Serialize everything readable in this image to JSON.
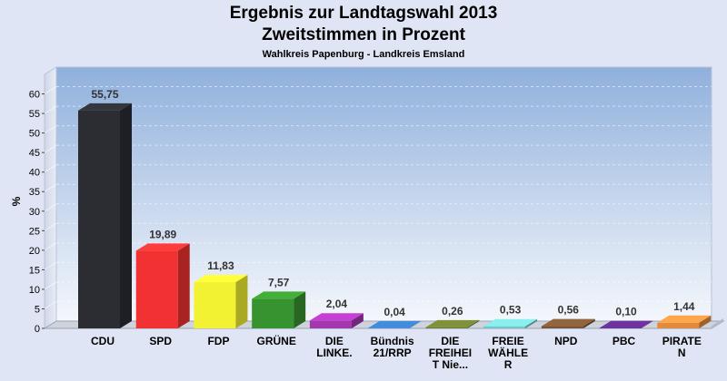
{
  "chart_data": {
    "type": "bar",
    "title": "Ergebnis zur Landtagswahl 2013",
    "subtitle": "Zweitstimmen in Prozent",
    "caption": "Wahlkreis Papenburg - Landkreis Emsland",
    "ylabel": "%",
    "xlabel": "",
    "ylim": [
      0,
      65
    ],
    "yticks": [
      0,
      5,
      10,
      15,
      20,
      25,
      30,
      35,
      40,
      45,
      50,
      55,
      60
    ],
    "categories": [
      "CDU",
      "SPD",
      "FDP",
      "GRÜNE",
      "DIE LINKE.",
      "Bündnis 21/RRP",
      "DIE FREIHEIT Nie...",
      "FREIE WÄHLER",
      "NPD",
      "PBC",
      "PIRATEN"
    ],
    "category_lines": [
      [
        "CDU"
      ],
      [
        "SPD"
      ],
      [
        "FDP"
      ],
      [
        "GRÜNE"
      ],
      [
        "DIE",
        "LINKE."
      ],
      [
        "Bündnis",
        "21/RRP"
      ],
      [
        "DIE",
        "FREIHEI",
        "T Nie..."
      ],
      [
        "FREIE",
        "WÄHLE",
        "R"
      ],
      [
        "NPD"
      ],
      [
        "PBC"
      ],
      [
        "PIRATE",
        "N"
      ]
    ],
    "values": [
      55.75,
      19.89,
      11.83,
      7.57,
      2.04,
      0.04,
      0.26,
      0.53,
      0.56,
      0.1,
      1.44
    ],
    "value_labels": [
      "55,75",
      "19,89",
      "11,83",
      "7,57",
      "2,04",
      "0,04",
      "0,26",
      "0,53",
      "0,56",
      "0,10",
      "1,44"
    ],
    "colors": [
      "#2b2d33",
      "#f23232",
      "#f2f232",
      "#37932f",
      "#a436b0",
      "#3875b8",
      "#6b7a2f",
      "#72c7c7",
      "#7a5434",
      "#5c2a86",
      "#e28a3e"
    ],
    "grid": true,
    "legend": "none"
  }
}
